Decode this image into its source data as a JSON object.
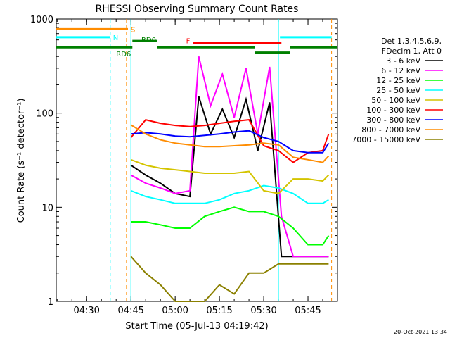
{
  "chart_data": {
    "type": "line",
    "title": "RHESSI Observing Summary Count Rates",
    "xlabel": "Start Time (05-Jul-13 04:19:42)",
    "ylabel": "Count Rate (s⁻¹ detector⁻¹)",
    "ylog": true,
    "ylim": [
      1,
      1000
    ],
    "xlim": [
      "04:19:42",
      "05:55:00"
    ],
    "x_ticks": [
      "04:30",
      "04:45",
      "05:00",
      "05:15",
      "05:30",
      "05:45"
    ],
    "y_ticks": [
      "1",
      "10",
      "100",
      "1000"
    ],
    "grid": false,
    "legend_position": "right",
    "legend_header": [
      "Det 1,3,4,5,6,9,",
      "FDecim 1, Att 0"
    ],
    "footer_date": "20-Oct-2021 13:34",
    "series": [
      {
        "name": "3 - 6 keV",
        "color": "#000000",
        "x": [
          "04:45",
          "04:50",
          "04:55",
          "05:00",
          "05:05",
          "05:08",
          "05:12",
          "05:16",
          "05:20",
          "05:24",
          "05:28",
          "05:32",
          "05:36",
          "05:40",
          "05:45",
          "05:50",
          "05:52"
        ],
        "values": [
          28,
          22,
          18,
          14,
          13,
          150,
          60,
          110,
          55,
          140,
          40,
          130,
          3,
          3,
          3,
          3,
          3
        ]
      },
      {
        "name": "6 - 12 keV",
        "color": "#ff00ff",
        "x": [
          "04:45",
          "04:50",
          "04:55",
          "05:00",
          "05:05",
          "05:08",
          "05:12",
          "05:16",
          "05:20",
          "05:24",
          "05:28",
          "05:32",
          "05:36",
          "05:40",
          "05:45",
          "05:50",
          "05:52"
        ],
        "values": [
          22,
          18,
          16,
          14,
          15,
          400,
          120,
          260,
          90,
          300,
          60,
          310,
          8,
          3,
          3,
          3,
          3
        ]
      },
      {
        "name": "12 - 25 keV",
        "color": "#00ff00",
        "x": [
          "04:45",
          "04:50",
          "04:55",
          "05:00",
          "05:05",
          "05:10",
          "05:15",
          "05:20",
          "05:25",
          "05:30",
          "05:35",
          "05:40",
          "05:45",
          "05:50",
          "05:52"
        ],
        "values": [
          7,
          7,
          6.5,
          6,
          6,
          8,
          9,
          10,
          9,
          9,
          8,
          6,
          4,
          4,
          5
        ]
      },
      {
        "name": "25 - 50 keV",
        "color": "#00ffff",
        "x": [
          "04:45",
          "04:50",
          "04:55",
          "05:00",
          "05:05",
          "05:10",
          "05:15",
          "05:20",
          "05:25",
          "05:30",
          "05:35",
          "05:40",
          "05:45",
          "05:50",
          "05:52"
        ],
        "values": [
          15,
          13,
          12,
          11,
          11,
          11,
          12,
          14,
          15,
          17,
          16,
          14,
          11,
          11,
          12
        ]
      },
      {
        "name": "50 - 100 keV",
        "color": "#d4c400",
        "x": [
          "04:45",
          "04:50",
          "04:55",
          "05:00",
          "05:05",
          "05:10",
          "05:15",
          "05:20",
          "05:25",
          "05:30",
          "05:35",
          "05:40",
          "05:45",
          "05:50",
          "05:52"
        ],
        "values": [
          32,
          28,
          26,
          25,
          24,
          23,
          23,
          23,
          24,
          15,
          14,
          20,
          20,
          19,
          22
        ]
      },
      {
        "name": "100 - 300 keV",
        "color": "#ff0000",
        "x": [
          "04:45",
          "04:50",
          "04:55",
          "05:00",
          "05:05",
          "05:10",
          "05:15",
          "05:20",
          "05:25",
          "05:30",
          "05:35",
          "05:40",
          "05:45",
          "05:50",
          "05:52"
        ],
        "values": [
          55,
          85,
          78,
          74,
          72,
          74,
          78,
          82,
          85,
          45,
          40,
          30,
          38,
          40,
          60
        ]
      },
      {
        "name": "300 - 800 keV",
        "color": "#0000ff",
        "x": [
          "04:45",
          "04:50",
          "04:55",
          "05:00",
          "05:05",
          "05:10",
          "05:15",
          "05:20",
          "05:25",
          "05:30",
          "05:35",
          "05:40",
          "05:45",
          "05:50",
          "05:52"
        ],
        "values": [
          60,
          62,
          60,
          57,
          56,
          58,
          60,
          63,
          65,
          55,
          50,
          40,
          38,
          38,
          48
        ]
      },
      {
        "name": "800 - 7000 keV",
        "color": "#ff8c00",
        "x": [
          "04:45",
          "04:50",
          "04:55",
          "05:00",
          "05:05",
          "05:10",
          "05:15",
          "05:20",
          "05:25",
          "05:30",
          "05:35",
          "05:40",
          "05:45",
          "05:50",
          "05:52"
        ],
        "values": [
          75,
          60,
          52,
          48,
          46,
          44,
          44,
          45,
          46,
          48,
          46,
          34,
          32,
          30,
          35
        ]
      },
      {
        "name": "7000 - 15000 keV",
        "color": "#8b8000",
        "x": [
          "04:45",
          "04:50",
          "04:55",
          "05:00",
          "05:05",
          "05:10",
          "05:15",
          "05:20",
          "05:25",
          "05:30",
          "05:35",
          "05:40",
          "05:45",
          "05:50",
          "05:52"
        ],
        "values": [
          3,
          2,
          1.5,
          1,
          1,
          1,
          1.5,
          1.2,
          2,
          2,
          2.5,
          2.5,
          2.5,
          2.5,
          2.5
        ]
      }
    ],
    "annotations": [
      {
        "label": "S",
        "color": "#ff8c00",
        "x_start": "04:19:42",
        "x_end": "04:44:00",
        "level": 780
      },
      {
        "label": "N",
        "color": "#00ffff",
        "x_start": "04:19:42",
        "x_end": "04:38:00",
        "level": 640
      },
      {
        "label": "",
        "color": "#00ffff",
        "x_start": "05:35:30",
        "x_end": "05:53:00",
        "level": 640
      },
      {
        "label": "RD0",
        "color": "#008000",
        "x_start": "04:45:30",
        "x_end": "04:54:00",
        "level": 585
      },
      {
        "label": "RD6",
        "color": "#008000",
        "x_start": "04:19:42",
        "x_end": "04:45:30",
        "level": 500
      },
      {
        "label": "",
        "color": "#008000",
        "x_start": "04:54:00",
        "x_end": "05:27:00",
        "level": 500
      },
      {
        "label": "",
        "color": "#008000",
        "x_start": "05:27:00",
        "x_end": "05:39:00",
        "level": 440
      },
      {
        "label": "",
        "color": "#008000",
        "x_start": "05:39:00",
        "x_end": "05:55:00",
        "level": 500
      },
      {
        "label": "F",
        "color": "#ff0000",
        "x_start": "05:06:00",
        "x_end": "05:36:00",
        "level": 560
      }
    ],
    "vertical_markers": [
      {
        "x": "04:38:00",
        "color": "#00ffff",
        "style": "dashed"
      },
      {
        "x": "04:43:30",
        "color": "#ff8c00",
        "style": "dashed"
      },
      {
        "x": "04:45:00",
        "color": "#00ffff",
        "style": "solid"
      },
      {
        "x": "05:35:00",
        "color": "#00ffff",
        "style": "solid"
      },
      {
        "x": "05:52:30",
        "color": "#ff8c00",
        "style": "solid"
      },
      {
        "x": "05:53:00",
        "color": "#ff8c00",
        "style": "dashed"
      }
    ]
  }
}
